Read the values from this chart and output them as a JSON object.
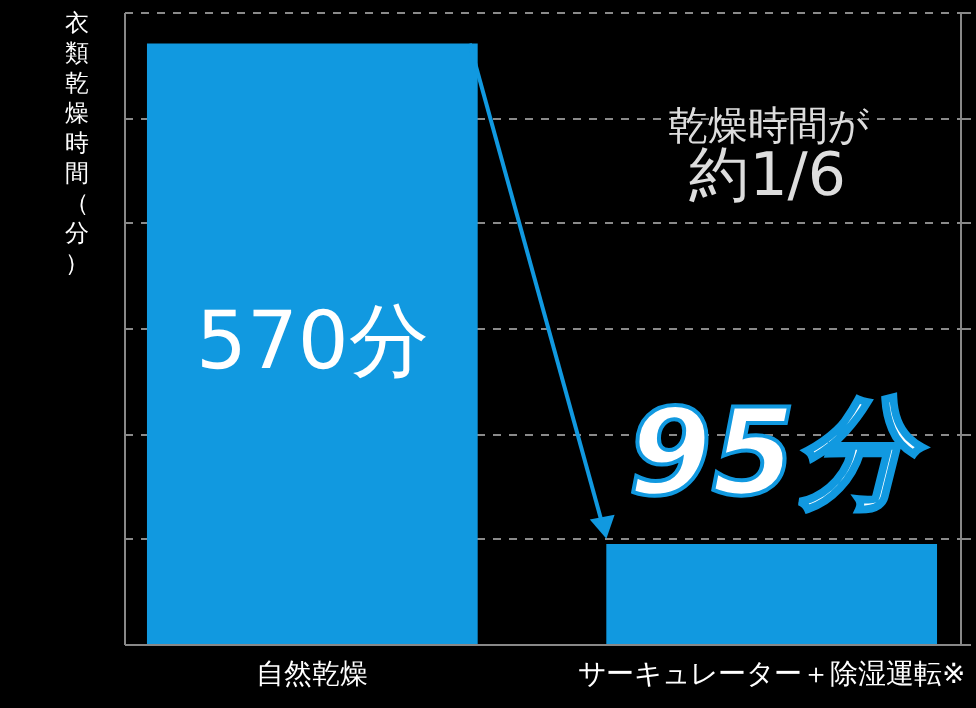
{
  "chart_data": {
    "type": "bar",
    "ylabel": "衣類乾燥時間（分）",
    "categories": [
      "自然乾燥",
      "サーキュレーター＋除湿運転※"
    ],
    "values": [
      570,
      95
    ],
    "color": "#1199e0",
    "value_labels": [
      "570分",
      "95分"
    ],
    "ylim": [
      0,
      600
    ],
    "yticks": [
      {
        "value": 100,
        "label": null
      },
      {
        "value": 200,
        "label": null
      },
      {
        "value": 300,
        "label": null
      },
      {
        "value": 400,
        "label": null
      },
      {
        "value": 500,
        "label": null
      },
      {
        "value": 600,
        "label": null
      }
    ],
    "grid": "y",
    "tick_labels": "x",
    "annotations": [
      "乾燥時間が",
      "約1/6"
    ]
  }
}
